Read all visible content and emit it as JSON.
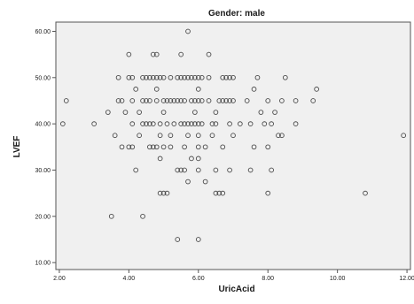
{
  "chart_data": {
    "type": "scatter",
    "title": "Gender: male",
    "xlabel": "UricAcid",
    "ylabel": "LVEF",
    "xlim": [
      1.9,
      12.1
    ],
    "ylim": [
      8.5,
      62
    ],
    "grid": false,
    "colors": {
      "plot_background": "#f0f0f0",
      "marker_stroke": "#4a4a4a",
      "axis": "#555555"
    },
    "x_ticks": [
      {
        "value": 2,
        "label": "2.00"
      },
      {
        "value": 4,
        "label": "4.00"
      },
      {
        "value": 6,
        "label": "6.00"
      },
      {
        "value": 8,
        "label": "8.00"
      },
      {
        "value": 10,
        "label": "10.00"
      },
      {
        "value": 12,
        "label": "12.00"
      }
    ],
    "y_ticks": [
      {
        "value": 10,
        "label": "10.00"
      },
      {
        "value": 20,
        "label": "20.00"
      },
      {
        "value": 30,
        "label": "30.00"
      },
      {
        "value": 40,
        "label": "40.00"
      },
      {
        "value": 50,
        "label": "50.00"
      },
      {
        "value": 60,
        "label": "60.00"
      }
    ],
    "points": [
      [
        5.7,
        60
      ],
      [
        4.0,
        55
      ],
      [
        4.7,
        55
      ],
      [
        4.8,
        55
      ],
      [
        5.5,
        55
      ],
      [
        6.3,
        55
      ],
      [
        3.7,
        50
      ],
      [
        4.0,
        50
      ],
      [
        4.1,
        50
      ],
      [
        4.4,
        50
      ],
      [
        4.5,
        50
      ],
      [
        4.6,
        50
      ],
      [
        4.7,
        50
      ],
      [
        4.8,
        50
      ],
      [
        4.9,
        50
      ],
      [
        5.0,
        50
      ],
      [
        5.2,
        50
      ],
      [
        5.4,
        50
      ],
      [
        5.5,
        50
      ],
      [
        5.6,
        50
      ],
      [
        5.7,
        50
      ],
      [
        5.8,
        50
      ],
      [
        5.9,
        50
      ],
      [
        6.0,
        50
      ],
      [
        6.1,
        50
      ],
      [
        6.3,
        50
      ],
      [
        6.7,
        50
      ],
      [
        6.8,
        50
      ],
      [
        6.9,
        50
      ],
      [
        7.0,
        50
      ],
      [
        7.7,
        50
      ],
      [
        8.5,
        50
      ],
      [
        4.2,
        47.5
      ],
      [
        4.8,
        47.5
      ],
      [
        6.0,
        47.5
      ],
      [
        7.6,
        47.5
      ],
      [
        9.4,
        47.5
      ],
      [
        2.2,
        45
      ],
      [
        3.7,
        45
      ],
      [
        3.8,
        45
      ],
      [
        4.1,
        45
      ],
      [
        4.4,
        45
      ],
      [
        4.5,
        45
      ],
      [
        4.6,
        45
      ],
      [
        4.8,
        45
      ],
      [
        5.0,
        45
      ],
      [
        5.1,
        45
      ],
      [
        5.2,
        45
      ],
      [
        5.3,
        45
      ],
      [
        5.4,
        45
      ],
      [
        5.5,
        45
      ],
      [
        5.6,
        45
      ],
      [
        5.8,
        45
      ],
      [
        5.9,
        45
      ],
      [
        6.0,
        45
      ],
      [
        6.1,
        45
      ],
      [
        6.3,
        45
      ],
      [
        6.6,
        45
      ],
      [
        6.7,
        45
      ],
      [
        6.8,
        45
      ],
      [
        6.9,
        45
      ],
      [
        7.0,
        45
      ],
      [
        7.4,
        45
      ],
      [
        8.0,
        45
      ],
      [
        8.4,
        45
      ],
      [
        8.8,
        45
      ],
      [
        9.3,
        45
      ],
      [
        3.4,
        42.5
      ],
      [
        3.9,
        42.5
      ],
      [
        4.3,
        42.5
      ],
      [
        5.0,
        42.5
      ],
      [
        5.9,
        42.5
      ],
      [
        6.5,
        42.5
      ],
      [
        7.8,
        42.5
      ],
      [
        8.2,
        42.5
      ],
      [
        2.1,
        40
      ],
      [
        3.0,
        40
      ],
      [
        4.1,
        40
      ],
      [
        4.4,
        40
      ],
      [
        4.5,
        40
      ],
      [
        4.6,
        40
      ],
      [
        4.7,
        40
      ],
      [
        4.9,
        40
      ],
      [
        5.1,
        40
      ],
      [
        5.3,
        40
      ],
      [
        5.5,
        40
      ],
      [
        5.6,
        40
      ],
      [
        5.7,
        40
      ],
      [
        5.8,
        40
      ],
      [
        5.9,
        40
      ],
      [
        6.0,
        40
      ],
      [
        6.1,
        40
      ],
      [
        6.4,
        40
      ],
      [
        6.5,
        40
      ],
      [
        6.9,
        40
      ],
      [
        7.2,
        40
      ],
      [
        7.5,
        40
      ],
      [
        7.9,
        40
      ],
      [
        8.1,
        40
      ],
      [
        8.8,
        40
      ],
      [
        3.6,
        37.5
      ],
      [
        4.3,
        37.5
      ],
      [
        4.9,
        37.5
      ],
      [
        5.2,
        37.5
      ],
      [
        5.7,
        37.5
      ],
      [
        6.0,
        37.5
      ],
      [
        6.4,
        37.5
      ],
      [
        7.0,
        37.5
      ],
      [
        8.3,
        37.5
      ],
      [
        8.4,
        37.5
      ],
      [
        11.9,
        37.5
      ],
      [
        3.8,
        35
      ],
      [
        4.0,
        35
      ],
      [
        4.1,
        35
      ],
      [
        4.6,
        35
      ],
      [
        4.7,
        35
      ],
      [
        4.8,
        35
      ],
      [
        5.0,
        35
      ],
      [
        5.2,
        35
      ],
      [
        5.6,
        35
      ],
      [
        6.0,
        35
      ],
      [
        6.2,
        35
      ],
      [
        6.7,
        35
      ],
      [
        7.6,
        35
      ],
      [
        8.0,
        35
      ],
      [
        4.9,
        32.5
      ],
      [
        5.8,
        32.5
      ],
      [
        6.0,
        32.5
      ],
      [
        4.2,
        30
      ],
      [
        5.4,
        30
      ],
      [
        5.5,
        30
      ],
      [
        5.6,
        30
      ],
      [
        6.0,
        30
      ],
      [
        6.5,
        30
      ],
      [
        6.9,
        30
      ],
      [
        7.5,
        30
      ],
      [
        8.1,
        30
      ],
      [
        5.7,
        27.5
      ],
      [
        6.2,
        27.5
      ],
      [
        4.9,
        25
      ],
      [
        5.0,
        25
      ],
      [
        5.1,
        25
      ],
      [
        6.5,
        25
      ],
      [
        6.6,
        25
      ],
      [
        6.7,
        25
      ],
      [
        8.0,
        25
      ],
      [
        10.8,
        25
      ],
      [
        3.5,
        20
      ],
      [
        4.4,
        20
      ],
      [
        5.4,
        15
      ],
      [
        6.0,
        15
      ]
    ]
  }
}
